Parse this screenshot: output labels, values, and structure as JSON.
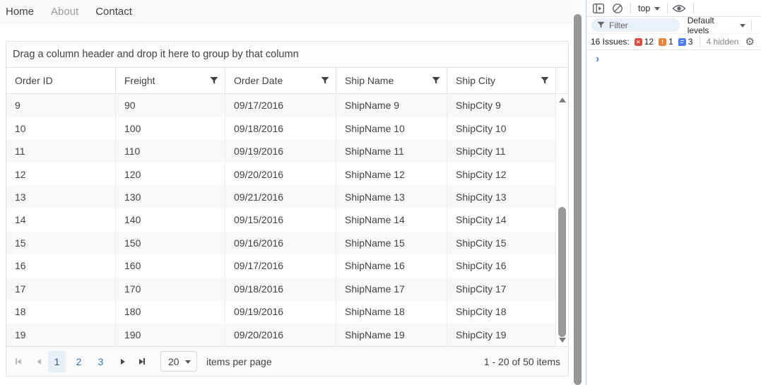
{
  "nav": {
    "items": [
      {
        "label": "Home",
        "emphasis": "normal"
      },
      {
        "label": "About",
        "emphasis": "muted"
      },
      {
        "label": "Contact",
        "emphasis": "normal"
      }
    ]
  },
  "grid": {
    "group_hint": "Drag a column header and drop it here to group by that column",
    "columns": [
      {
        "label": "Order ID",
        "has_filter": false
      },
      {
        "label": "Freight",
        "has_filter": true
      },
      {
        "label": "Order Date",
        "has_filter": true
      },
      {
        "label": "Ship Name",
        "has_filter": true
      },
      {
        "label": "Ship City",
        "has_filter": true
      }
    ],
    "rows": [
      [
        "9",
        "90",
        "09/17/2016",
        "ShipName 9",
        "ShipCity 9"
      ],
      [
        "10",
        "100",
        "09/18/2016",
        "ShipName 10",
        "ShipCity 10"
      ],
      [
        "11",
        "110",
        "09/19/2016",
        "ShipName 11",
        "ShipCity 11"
      ],
      [
        "12",
        "120",
        "09/20/2016",
        "ShipName 12",
        "ShipCity 12"
      ],
      [
        "13",
        "130",
        "09/21/2016",
        "ShipName 13",
        "ShipCity 13"
      ],
      [
        "14",
        "140",
        "09/15/2016",
        "ShipName 14",
        "ShipCity 14"
      ],
      [
        "15",
        "150",
        "09/16/2016",
        "ShipName 15",
        "ShipCity 15"
      ],
      [
        "16",
        "160",
        "09/17/2016",
        "ShipName 16",
        "ShipCity 16"
      ],
      [
        "17",
        "170",
        "09/18/2016",
        "ShipName 17",
        "ShipCity 17"
      ],
      [
        "18",
        "180",
        "09/19/2016",
        "ShipName 18",
        "ShipCity 18"
      ],
      [
        "19",
        "190",
        "09/20/2016",
        "ShipName 19",
        "ShipCity 19"
      ]
    ],
    "pager": {
      "pages": [
        "1",
        "2",
        "3"
      ],
      "active_page": "1",
      "page_size": "20",
      "per_page_label": "items per page",
      "info": "1 - 20 of 50 items"
    }
  },
  "devtools": {
    "context_label": "top",
    "filter_label": "Filter",
    "levels_label": "Default levels",
    "issues": {
      "label": "16 Issues:",
      "error_count": "12",
      "warning_count": "1",
      "info_count": "3",
      "hidden_label": "4 hidden"
    },
    "icons": {
      "gear": "⚙",
      "prompt": "›",
      "error_glyph": "×",
      "warning_glyph": "!"
    },
    "colors": {
      "error_red": "#dd4b3e",
      "warning_orange": "#e5823b",
      "info_blue": "#4f7de8",
      "prompt_blue": "#4e7de8",
      "link_blue": "#3276b1",
      "selected_page_bg": "#e7f0f8"
    }
  }
}
